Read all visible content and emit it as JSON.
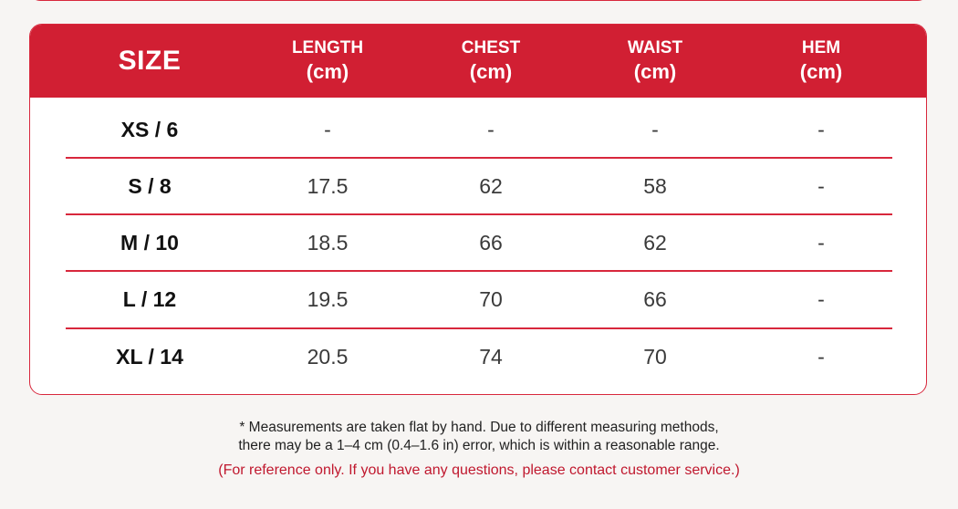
{
  "table": {
    "headers": [
      {
        "line1": "SIZE",
        "line2": ""
      },
      {
        "line1": "LENGTH",
        "line2": "(cm)"
      },
      {
        "line1": "CHEST",
        "line2": "(cm)"
      },
      {
        "line1": "WAIST",
        "line2": "(cm)"
      },
      {
        "line1": "HEM",
        "line2": "(cm)"
      }
    ],
    "rows": [
      {
        "size": "XS / 6",
        "length": "-",
        "chest": "-",
        "waist": "-",
        "hem": "-"
      },
      {
        "size": "S / 8",
        "length": "17.5",
        "chest": "62",
        "waist": "58",
        "hem": "-"
      },
      {
        "size": "M / 10",
        "length": "18.5",
        "chest": "66",
        "waist": "62",
        "hem": "-"
      },
      {
        "size": "L / 12",
        "length": "19.5",
        "chest": "70",
        "waist": "66",
        "hem": "-"
      },
      {
        "size": "XL / 14",
        "length": "20.5",
        "chest": "74",
        "waist": "70",
        "hem": "-"
      }
    ]
  },
  "notes": {
    "line1": "* Measurements are taken flat by hand. Due to different measuring methods,",
    "line2": "there may be a 1–4 cm (0.4–1.6 in) error, which is within a reasonable range.",
    "reference": "(For reference only. If you have any questions, please contact customer service.)"
  },
  "colors": {
    "accent": "#d11f33",
    "background": "#f7f5f3",
    "reference_text": "#c0182e"
  }
}
